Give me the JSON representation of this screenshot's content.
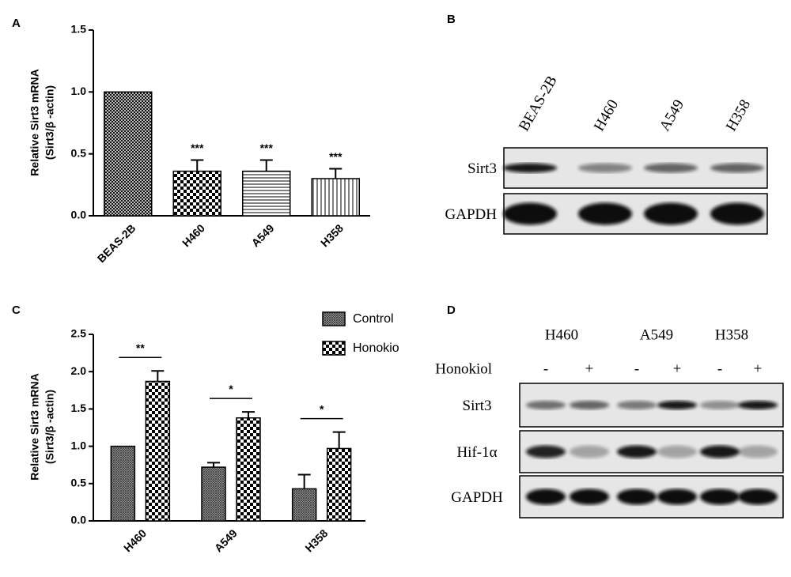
{
  "chart_data": [
    {
      "type": "bar",
      "panel_label": "A",
      "ylabel": [
        "Relative Sirt3 mRNA",
        "(Sirt3/β -actin)"
      ],
      "categories": [
        "BEAS-2B",
        "H460",
        "A549",
        "H358"
      ],
      "values": [
        1.0,
        0.36,
        0.36,
        0.3
      ],
      "errors": [
        0,
        0.09,
        0.09,
        0.08
      ],
      "patterns": [
        "crosshatch",
        "checker",
        "hlines",
        "vlines"
      ],
      "significance": [
        null,
        "***",
        "***",
        "***"
      ],
      "ylim": [
        0,
        1.5
      ],
      "yticks": [
        {
          "value": 0,
          "label": "0.0"
        },
        0.5,
        {
          "value": 1,
          "label": "1.0"
        },
        1.5
      ]
    },
    {
      "type": "grouped-bar",
      "panel_label": "C",
      "ylabel": [
        "Relative Sirt3 mRNA",
        "(Sirt3/β -actin)"
      ],
      "categories": [
        "H460",
        "A549",
        "H358"
      ],
      "series": [
        {
          "name": "Control",
          "pattern": "finehatch",
          "values": [
            1.0,
            0.72,
            0.43
          ],
          "errors": [
            0,
            0.06,
            0.19
          ]
        },
        {
          "name": "Honokio",
          "pattern": "checker",
          "values": [
            1.87,
            1.38,
            0.97
          ],
          "errors": [
            0.14,
            0.08,
            0.22
          ]
        }
      ],
      "significance": [
        "**",
        "*",
        "*"
      ],
      "ylim": [
        0,
        2.5
      ],
      "yticks": [
        {
          "value": 0,
          "label": "0.0"
        },
        0.5,
        {
          "value": 1,
          "label": "1.0"
        },
        1.5,
        {
          "value": 2,
          "label": "2.0"
        },
        2.5
      ]
    }
  ],
  "blots": [
    {
      "panel_label": "B",
      "lanes": [
        "BEAS-2B",
        "H460",
        "A549",
        "H358"
      ],
      "rows": [
        "Sirt3",
        "GAPDH"
      ]
    },
    {
      "panel_label": "D",
      "groups": [
        "H460",
        "A549",
        "H358"
      ],
      "treatment_label": "Honokiol",
      "treatment_marks": [
        "-",
        "+",
        "-",
        "+",
        "-",
        "+"
      ],
      "rows": [
        "Sirt3",
        "Hif-1α",
        "GAPDH"
      ]
    }
  ]
}
